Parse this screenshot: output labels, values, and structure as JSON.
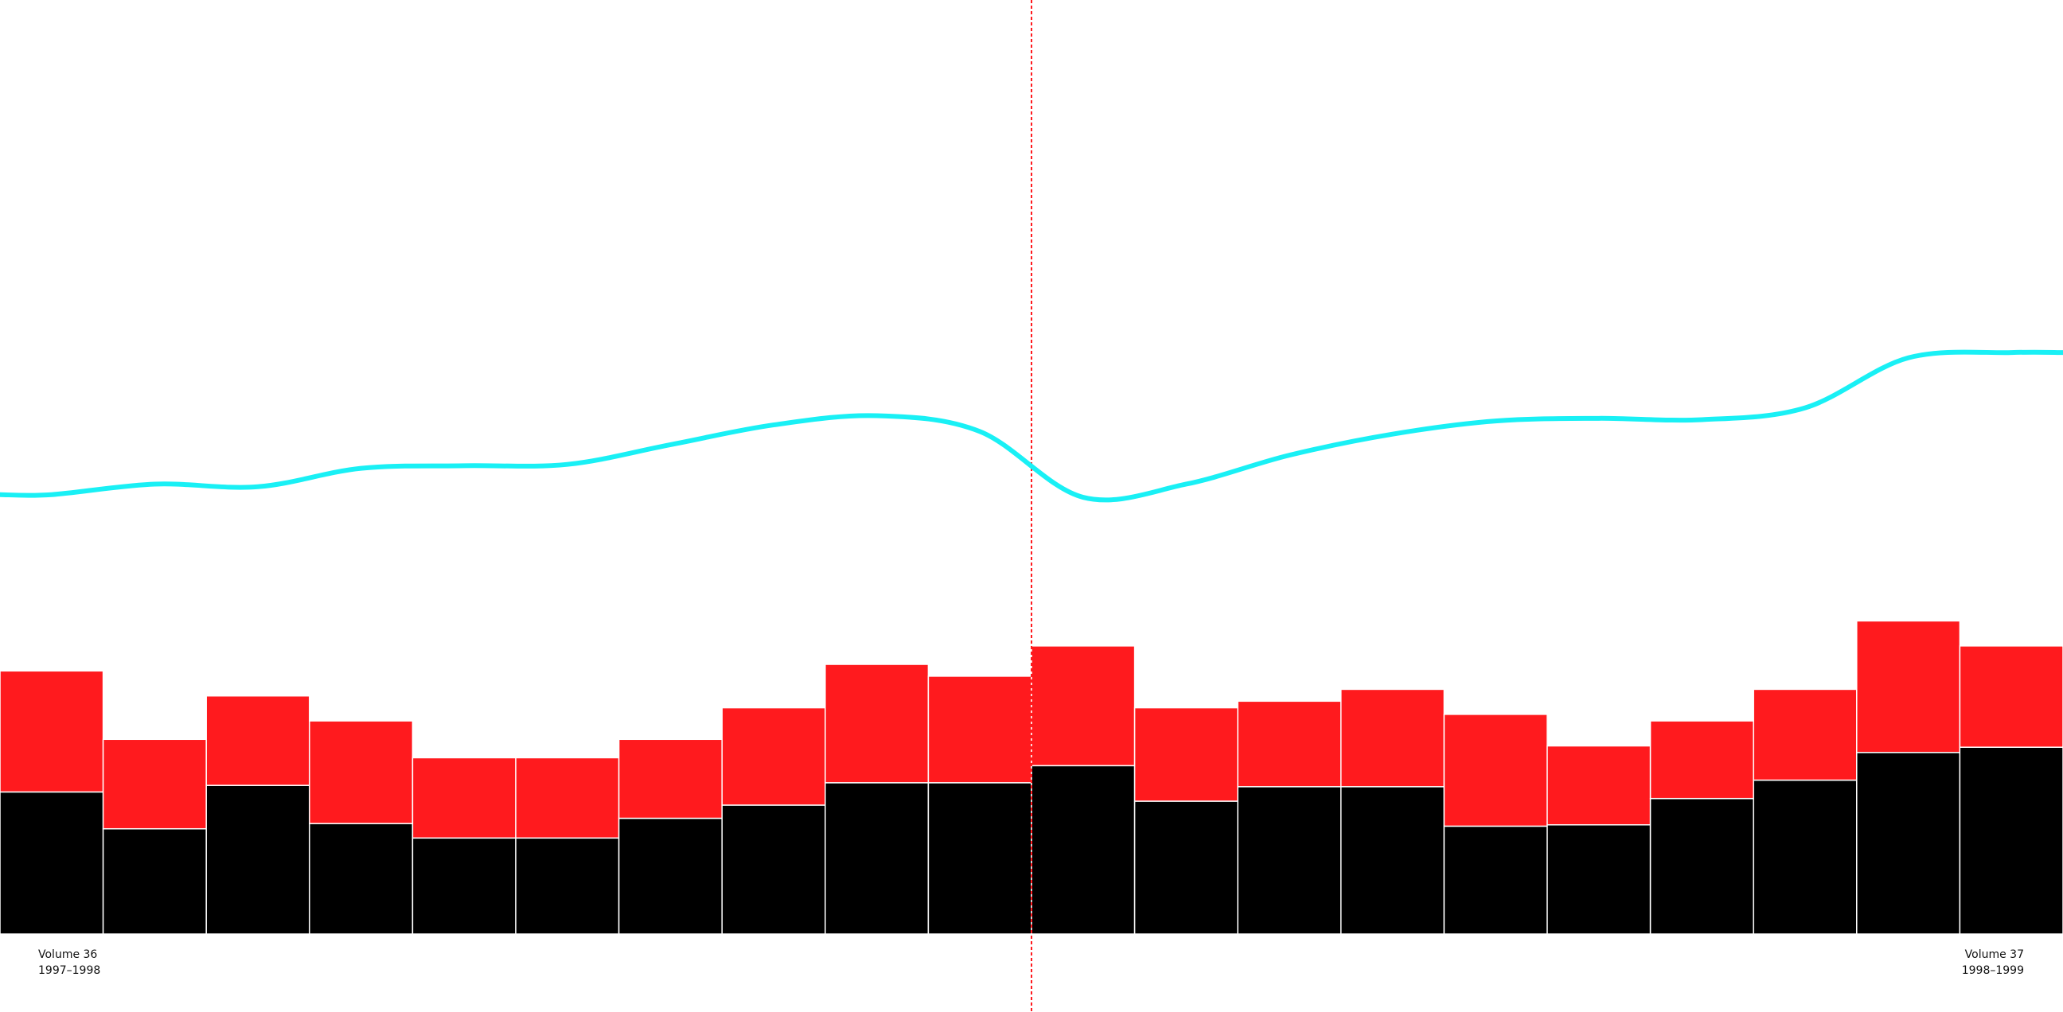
{
  "chart_data": {
    "type": "stacked-bar-line",
    "ylim": [
      0,
      710
    ],
    "categories": [
      null,
      null,
      null,
      null,
      null,
      null,
      null,
      null,
      null,
      null,
      null,
      null,
      null,
      null,
      null,
      null,
      null,
      null,
      null,
      null
    ],
    "series": [
      {
        "name": null,
        "color": "#000000",
        "values": [
          108,
          80,
          113,
          84,
          73,
          73,
          88,
          98,
          115,
          115,
          128,
          101,
          112,
          112,
          82,
          83,
          103,
          117,
          138,
          142
        ]
      },
      {
        "name": null,
        "color": "#ff1a1e",
        "values": [
          92,
          68,
          68,
          78,
          61,
          61,
          60,
          74,
          90,
          81,
          91,
          71,
          65,
          74,
          85,
          60,
          59,
          69,
          100,
          77
        ]
      },
      {
        "name": null,
        "type": "line",
        "color": "#19f0f5",
        "values": [
          334,
          342,
          340,
          354,
          356,
          357,
          372,
          387,
          394,
          382,
          332,
          342,
          364,
          380,
          390,
          392,
          391,
          400,
          438,
          442
        ]
      }
    ],
    "annotations": [
      {
        "title": "Volume 36",
        "years": "1997–1998"
      },
      {
        "title": "Volume 37",
        "years": "1998–1999"
      }
    ],
    "marker_color": "#ff1a1e"
  }
}
